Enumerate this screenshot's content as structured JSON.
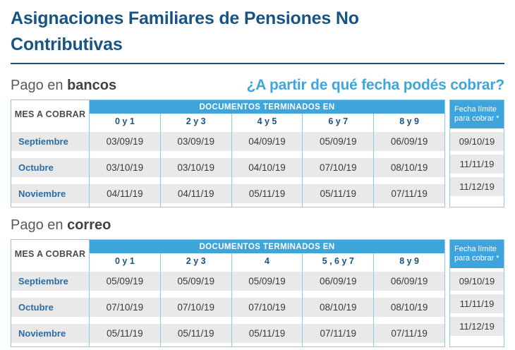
{
  "title": "Asignaciones Familiares de Pensiones No Contributivas",
  "question": "¿A partir de qué fecha podés cobrar?",
  "table_labels": {
    "month_col": "MES A COBRAR",
    "docs_header": "DOCUMENTOS TERMINADOS EN",
    "deadline_line1": "Fecha límite",
    "deadline_line2": "para cobrar *"
  },
  "colors": {
    "title_navy": "#175483",
    "accent_blue": "#3EA4DC",
    "border_light_blue": "#8FC9E9",
    "row_gray": "#E9E9E9",
    "month_blue": "#2A6CA5",
    "date_text": "#3A3A3A"
  },
  "sections": [
    {
      "heading_prefix": "Pago en ",
      "heading_bold": "bancos",
      "doc_columns": [
        "0 y 1",
        "2 y 3",
        "4 y 5",
        "6 y 7",
        "8 y 9"
      ],
      "rows": [
        {
          "month": "Septiembre",
          "dates": [
            "03/09/19",
            "03/09/19",
            "04/09/19",
            "05/09/19",
            "06/09/19"
          ],
          "deadline": "09/10/19"
        },
        {
          "month": "Octubre",
          "dates": [
            "03/10/19",
            "03/10/19",
            "04/10/19",
            "07/10/19",
            "08/10/19"
          ],
          "deadline": "11/11/19"
        },
        {
          "month": "Noviembre",
          "dates": [
            "04/11/19",
            "04/11/19",
            "05/11/19",
            "05/11/19",
            "07/11/19"
          ],
          "deadline": "11/12/19"
        }
      ]
    },
    {
      "heading_prefix": "Pago en ",
      "heading_bold": "correo",
      "doc_columns": [
        "0 y 1",
        "2 y 3",
        "4",
        "5 , 6 y 7",
        "8 y 9"
      ],
      "rows": [
        {
          "month": "Septiembre",
          "dates": [
            "05/09/19",
            "05/09/19",
            "05/09/19",
            "06/09/19",
            "06/09/19"
          ],
          "deadline": "09/10/19"
        },
        {
          "month": "Octubre",
          "dates": [
            "07/10/19",
            "07/10/19",
            "07/10/19",
            "08/10/19",
            "08/10/19"
          ],
          "deadline": "11/11/19"
        },
        {
          "month": "Noviembre",
          "dates": [
            "05/11/19",
            "05/11/19",
            "05/11/19",
            "07/11/19",
            "07/11/19"
          ],
          "deadline": "11/12/19"
        }
      ]
    }
  ]
}
